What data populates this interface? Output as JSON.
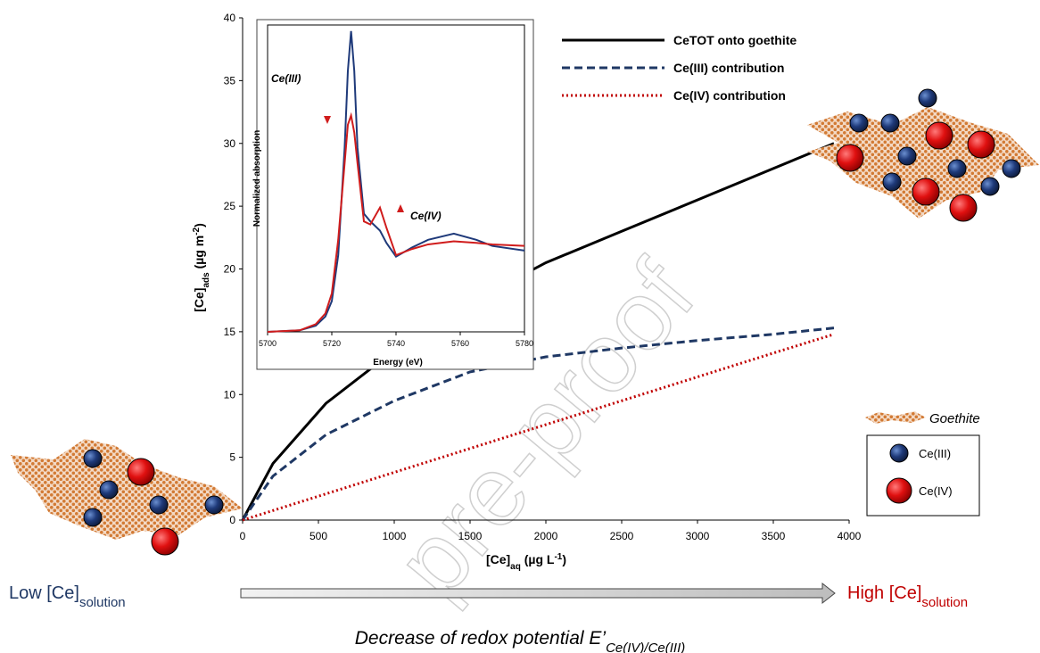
{
  "chart_data": [
    {
      "type": "line",
      "x_label": [
        "[Ce]",
        "aq",
        " (µg L",
        "-1",
        ")"
      ],
      "y_label": [
        "[Ce]",
        "ads",
        " (µg m",
        "-2",
        ")"
      ],
      "x": [
        0,
        200,
        550,
        1000,
        1500,
        2000,
        2500,
        3000,
        3500,
        3900
      ],
      "series": [
        {
          "name": "CeTOT onto goethite",
          "color": "#000000",
          "dash": "solid",
          "values": [
            0,
            4.5,
            9.3,
            13.5,
            17.3,
            20.5,
            23,
            25.5,
            28,
            30
          ]
        },
        {
          "name": "Ce(III) contribution",
          "color": "#1f3864",
          "dash": "dashed",
          "values": [
            0,
            3.5,
            6.8,
            9.5,
            11.8,
            13,
            13.7,
            14.3,
            14.8,
            15.3
          ]
        },
        {
          "name": "Ce(IV) contribution",
          "color": "#c00000",
          "dash": "dotted",
          "values": [
            0,
            0.76,
            2.09,
            3.8,
            5.7,
            7.6,
            9.5,
            11.4,
            13.3,
            14.8
          ]
        }
      ],
      "xlim": [
        0,
        4000
      ],
      "xticks": [
        0,
        500,
        1000,
        1500,
        2000,
        2500,
        3000,
        3500,
        4000
      ],
      "ylim": [
        0,
        40
      ],
      "yticks": [
        0,
        5,
        10,
        15,
        20,
        25,
        30,
        35,
        40
      ],
      "grid": false,
      "legend": "top-right"
    },
    {
      "type": "line",
      "x_label": "Energy (eV)",
      "y_label": "Normalized absorption",
      "x": [
        5700,
        5710,
        5715,
        5718,
        5720,
        5722,
        5724,
        5725,
        5726,
        5727,
        5728,
        5730,
        5732,
        5735,
        5737,
        5740,
        5745,
        5750,
        5758,
        5765,
        5770,
        5780
      ],
      "series": [
        {
          "color": "#1f3a7a",
          "values": [
            0,
            0.01,
            0.04,
            0.1,
            0.2,
            0.5,
            1.2,
            1.7,
            1.96,
            1.7,
            1.2,
            0.77,
            0.72,
            0.66,
            0.58,
            0.49,
            0.55,
            0.6,
            0.64,
            0.6,
            0.56,
            0.53
          ]
        },
        {
          "color": "#d01c1c",
          "values": [
            0,
            0.01,
            0.05,
            0.12,
            0.25,
            0.6,
            1.1,
            1.35,
            1.41,
            1.3,
            1.1,
            0.72,
            0.7,
            0.81,
            0.68,
            0.5,
            0.54,
            0.57,
            0.59,
            0.58,
            0.57,
            0.56
          ]
        }
      ],
      "xlim": [
        5700,
        5780
      ],
      "xticks": [
        5700,
        5720,
        5740,
        5760,
        5780
      ],
      "ylim": [
        0,
        2
      ],
      "grid": false,
      "annotations": [
        "Ce(III)",
        "Ce(IV)"
      ]
    }
  ],
  "illustration_legend": [
    "Goethite",
    "Ce(III)",
    "Ce(IV)"
  ],
  "low_label": [
    "Low [Ce]",
    "solution"
  ],
  "high_label": [
    "High [Ce]",
    "solution"
  ],
  "caption": [
    "Decrease of redox potential E’",
    "Ce(IV)/Ce(III)"
  ],
  "watermark": "pre-proof"
}
